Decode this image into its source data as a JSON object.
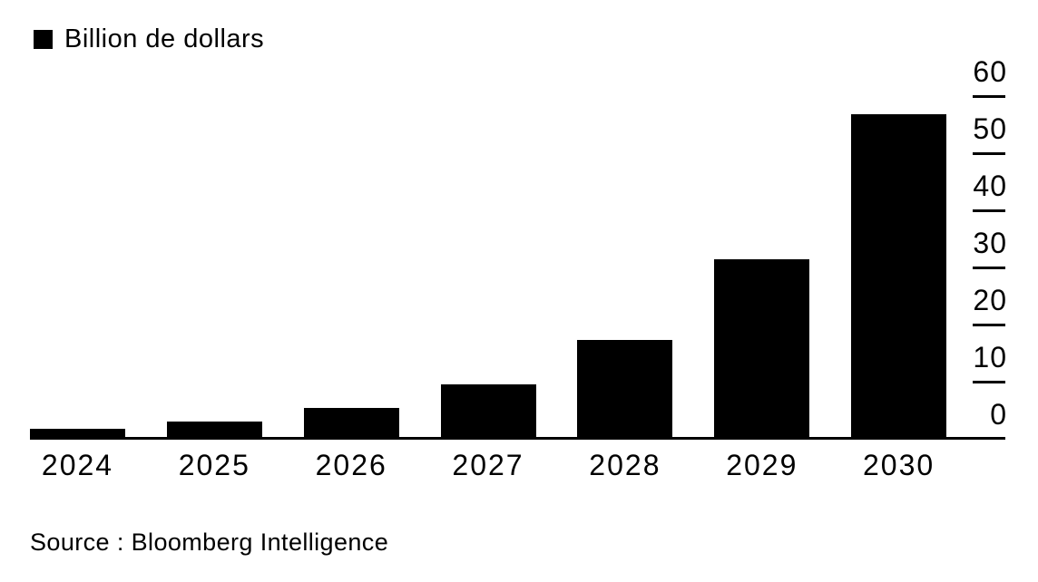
{
  "legend": {
    "label": "Billion de dollars",
    "swatch": "black-square"
  },
  "colors": {
    "bar": "#000000",
    "axis": "#000000",
    "text": "#000000",
    "background": "#ffffff"
  },
  "chart_data": {
    "type": "bar",
    "title": "",
    "series_name": "Billion de dollars",
    "categories": [
      "2024",
      "2025",
      "2026",
      "2027",
      "2028",
      "2029",
      "2030"
    ],
    "values": [
      1.7,
      3.0,
      5.4,
      9.5,
      17.3,
      31.5,
      56.8
    ],
    "xlabel": "",
    "ylabel": "Billion de dollars",
    "ylim": [
      0,
      60
    ],
    "yticks": [
      0,
      10,
      20,
      30,
      40,
      50,
      60
    ],
    "y_axis_side": "right",
    "grid": false,
    "legend_position": "top-left",
    "source": "Source : Bloomberg Intelligence"
  }
}
